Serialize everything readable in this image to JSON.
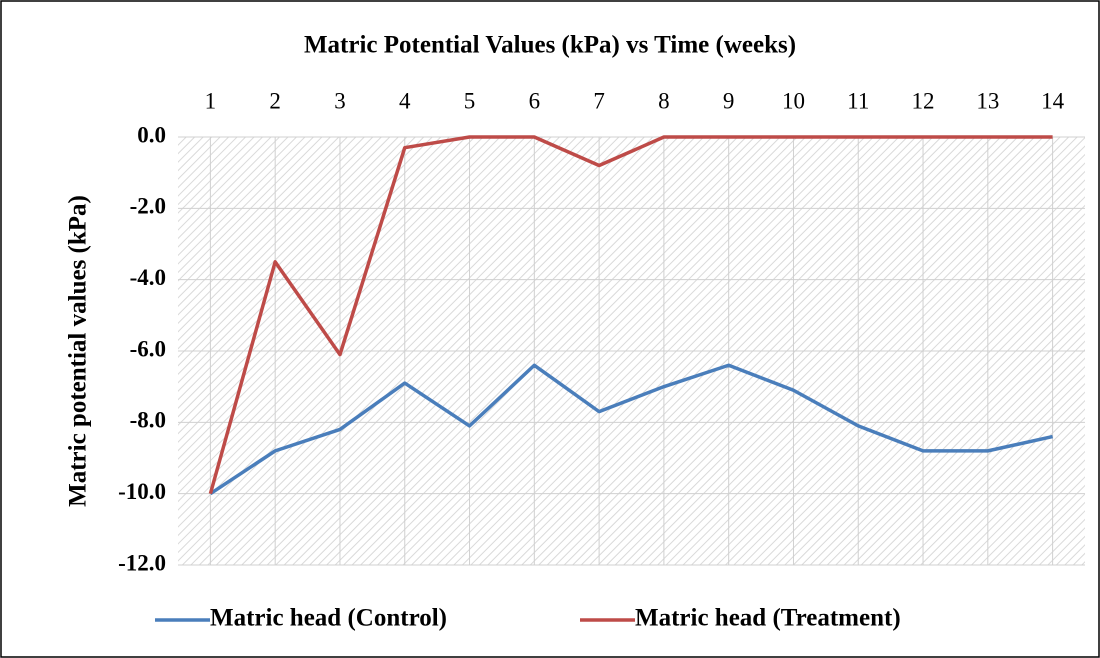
{
  "chart_data": {
    "type": "line",
    "title": "Matric Potential Values (kPa) vs Time (weeks)",
    "y_label": "Matric potential values (kPa)",
    "categories": [
      "1",
      "2",
      "3",
      "4",
      "5",
      "6",
      "7",
      "8",
      "9",
      "10",
      "11",
      "12",
      "13",
      "14"
    ],
    "series": [
      {
        "name": "Matric head (Control)",
        "color": "#4a7ebb",
        "values": [
          -10,
          -8.8,
          -8.2,
          -6.9,
          -8.1,
          -6.4,
          -7.7,
          -7.0,
          -6.4,
          -7.1,
          -8.1,
          -8.8,
          -8.8,
          -8.4
        ]
      },
      {
        "name": "Matric head (Treatment)",
        "color": "#be4b48",
        "values": [
          -10,
          -3.5,
          -6.1,
          -0.3,
          0,
          0,
          -0.8,
          0,
          0,
          0,
          0,
          0,
          0,
          0
        ]
      }
    ],
    "ylim": [
      -12,
      0
    ],
    "yticks": [
      {
        "value": 0,
        "label": "0.0"
      },
      {
        "value": -2,
        "label": "-2.0"
      },
      {
        "value": -4,
        "label": "-4.0"
      },
      {
        "value": -6,
        "label": "-6.0"
      },
      {
        "value": -8,
        "label": "-8.0"
      },
      {
        "value": -10,
        "label": "-10.0"
      },
      {
        "value": -12,
        "label": "-12.0"
      }
    ],
    "grid": true,
    "legend": "bottom"
  }
}
